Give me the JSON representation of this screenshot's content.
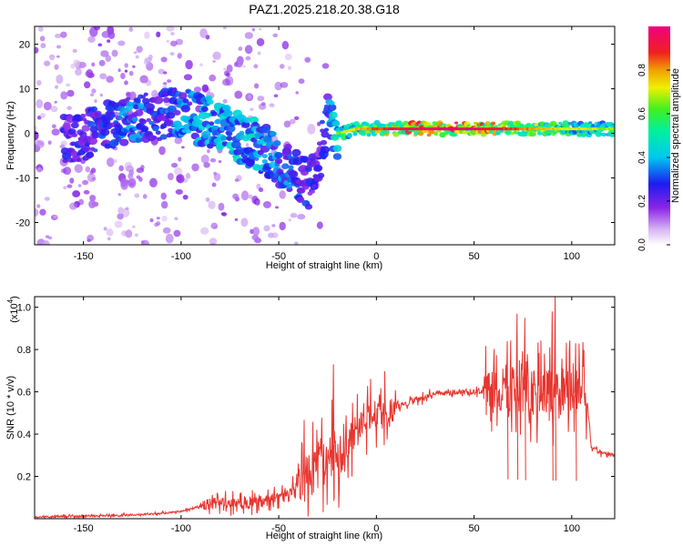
{
  "title": "PAZ1.2025.218.20.38.G18",
  "colors": {
    "accent_trace": "#e8352f",
    "axis": "#000000",
    "sparse_blob": "#c9a3f0"
  },
  "chart_data": [
    {
      "type": "heatmap",
      "xlabel": "Height of straight line (km)",
      "ylabel": "Frequency (Hz)",
      "xlim": [
        -175,
        122
      ],
      "ylim": [
        -25,
        24
      ],
      "xticks": [
        -150,
        -100,
        -50,
        0,
        50,
        100
      ],
      "yticks": [
        -20,
        -10,
        0,
        10,
        20
      ],
      "colorbar": {
        "label": "Normalized spectral amplitude",
        "range": [
          0,
          1
        ],
        "ticks": [
          "0.0",
          "0.2",
          "0.4",
          "0.6",
          "0.8"
        ],
        "colormap": "rainbow (white-violet-blue-cyan-green-yellow-orange-red-magenta)"
      },
      "ridge": {
        "x": [
          -155,
          -140,
          -125,
          -110,
          -100,
          -90,
          -80,
          -70,
          -60,
          -50,
          -45,
          -40,
          -35,
          -30,
          -25,
          -20,
          -10,
          0,
          20,
          40,
          60,
          80,
          100,
          120
        ],
        "y": [
          -1,
          1,
          3,
          4,
          5,
          3,
          2,
          -1,
          -3,
          -6,
          -8,
          -10,
          -12,
          -8,
          3,
          0,
          1,
          1,
          1,
          1,
          1,
          1,
          1,
          1
        ],
        "amplitude": [
          0.25,
          0.3,
          0.35,
          0.3,
          0.35,
          0.4,
          0.4,
          0.45,
          0.4,
          0.35,
          0.35,
          0.3,
          0.3,
          0.25,
          0.3,
          0.5,
          0.6,
          0.7,
          0.8,
          0.85,
          0.75,
          0.65,
          0.55,
          0.5
        ]
      }
    },
    {
      "type": "line",
      "xlabel": "Height of straight line (km)",
      "ylabel": "SNR (10 * v/v)",
      "multiplier": "(x10",
      "multiplier_exp": "4",
      "xlim": [
        -175,
        122
      ],
      "ylim": [
        0,
        1.05
      ],
      "xticks": [
        -150,
        -100,
        -50,
        0,
        50,
        100
      ],
      "yticks": [
        "0.2",
        "0.4",
        "0.6",
        "0.8",
        "1.0"
      ],
      "series": [
        {
          "envelope_x": [
            -175,
            -150,
            -125,
            -110,
            -100,
            -90,
            -80,
            -70,
            -60,
            -50,
            -40,
            -30,
            -25,
            -20,
            -15,
            -10,
            -5,
            0,
            10,
            20,
            30,
            40,
            50,
            60,
            65,
            70,
            75,
            80,
            85,
            90,
            95,
            100,
            105,
            108,
            110,
            115,
            122
          ],
          "envelope_y": [
            0.008,
            0.012,
            0.018,
            0.025,
            0.035,
            0.06,
            0.08,
            0.07,
            0.08,
            0.1,
            0.16,
            0.25,
            0.3,
            0.33,
            0.36,
            0.42,
            0.46,
            0.49,
            0.53,
            0.56,
            0.59,
            0.6,
            0.6,
            0.61,
            0.62,
            0.62,
            0.61,
            0.6,
            0.6,
            0.6,
            0.6,
            0.6,
            0.59,
            0.55,
            0.34,
            0.31,
            0.3
          ]
        }
      ],
      "spikes": [
        {
          "x": -22,
          "y": 0.73
        },
        {
          "x": 67,
          "y": 0.84
        },
        {
          "x": 72,
          "y": 0.97
        },
        {
          "x": 76,
          "y": 0.95
        },
        {
          "x": 90,
          "y": 0.98
        },
        {
          "x": 91.5,
          "y": 1.05
        },
        {
          "x": 102,
          "y": 0.83
        }
      ]
    }
  ]
}
